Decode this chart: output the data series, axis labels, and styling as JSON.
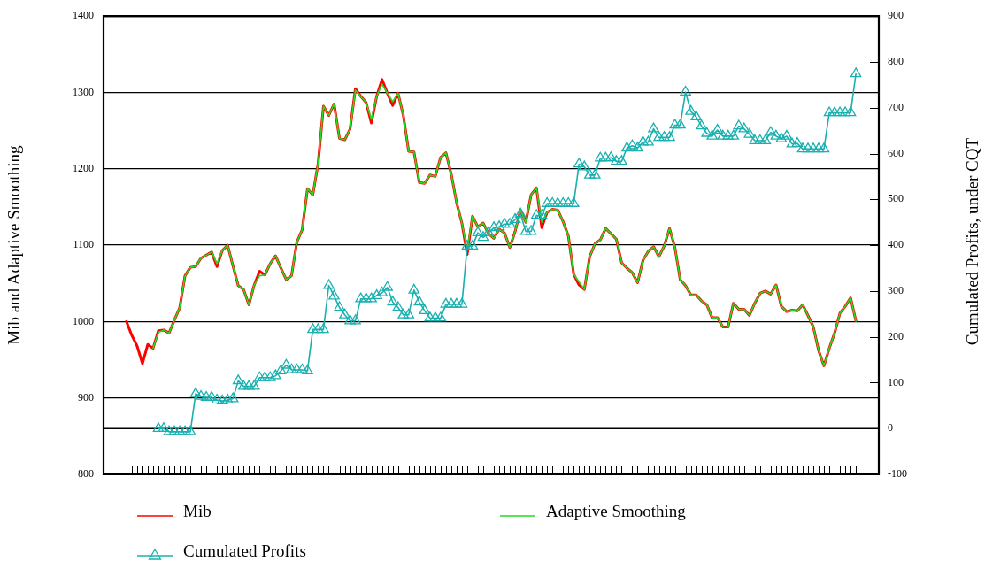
{
  "chart_data": {
    "type": "line",
    "ylabel": "Mib and Adaptive Smoothing",
    "y2label": "Cumulated Profits, under CQT",
    "categories": [
      null,
      null,
      null,
      null,
      null,
      null,
      null,
      null,
      null,
      null,
      null,
      null,
      null,
      null,
      null,
      null,
      null,
      null,
      null,
      null,
      null,
      null,
      null,
      null,
      null,
      null,
      null,
      null,
      null,
      null,
      null,
      null,
      null,
      null,
      null,
      null,
      null,
      null,
      null,
      null,
      null,
      null,
      null,
      null,
      null,
      null,
      null,
      null,
      null,
      null,
      null,
      null,
      null,
      null,
      null,
      null,
      null,
      null,
      null,
      null,
      null,
      null,
      null,
      null,
      null,
      null,
      null,
      null,
      null,
      null,
      null,
      null,
      null,
      null,
      null,
      null,
      null,
      null,
      null,
      null,
      null,
      null,
      null,
      null,
      null,
      null,
      null,
      null,
      null,
      null,
      null,
      null,
      null,
      null,
      null,
      null,
      null,
      null,
      null,
      null,
      null,
      null,
      null,
      null,
      null,
      null,
      null,
      null,
      null,
      null,
      null,
      null,
      null,
      null,
      null,
      null,
      null,
      null,
      null,
      null,
      null,
      null,
      null,
      null,
      null,
      null,
      null,
      null,
      null,
      null,
      null,
      null,
      null,
      null,
      null,
      null,
      null,
      null
    ],
    "series": [
      {
        "name": "Mib",
        "color": "#ff0000",
        "values": [
          1000,
          982,
          968,
          945,
          970,
          965,
          988,
          989,
          985,
          1002,
          1018,
          1060,
          1071,
          1072,
          1083,
          1087,
          1091,
          1072,
          1093,
          1100,
          1073,
          1047,
          1042,
          1022,
          1048,
          1066,
          1061,
          1076,
          1086,
          1070,
          1055,
          1060,
          1104,
          1120,
          1174,
          1166,
          1207,
          1282,
          1270,
          1285,
          1240,
          1238,
          1252,
          1305,
          1295,
          1287,
          1260,
          1295,
          1317,
          1299,
          1283,
          1299,
          1270,
          1223,
          1222,
          1182,
          1181,
          1192,
          1190,
          1215,
          1221,
          1193,
          1156,
          1129,
          1088,
          1138,
          1124,
          1129,
          1115,
          1109,
          1121,
          1116,
          1097,
          1118,
          1146,
          1130,
          1166,
          1175,
          1123,
          1143,
          1147,
          1146,
          1131,
          1112,
          1062,
          1048,
          1042,
          1085,
          1102,
          1107,
          1122,
          1115,
          1108,
          1077,
          1070,
          1064,
          1051,
          1080,
          1092,
          1098,
          1085,
          1099,
          1122,
          1097,
          1055,
          1047,
          1035,
          1035,
          1027,
          1022,
          1005,
          1005,
          993,
          993,
          1024,
          1016,
          1016,
          1008,
          1024,
          1037,
          1040,
          1036,
          1048,
          1020,
          1013,
          1015,
          1014,
          1022,
          1008,
          993,
          962,
          942,
          965,
          985,
          1011,
          1020,
          1031,
          1001
        ]
      },
      {
        "name": "Adaptive Smoothing",
        "color": "#22dd22",
        "values": [
          null,
          null,
          null,
          null,
          null,
          965,
          986,
          989,
          985,
          1002,
          1018,
          1060,
          1071,
          1072,
          1083,
          1087,
          1091,
          1076,
          1093,
          1100,
          1073,
          1047,
          1042,
          1022,
          1048,
          1060,
          1061,
          1076,
          1086,
          1070,
          1055,
          1060,
          1104,
          1120,
          1174,
          1166,
          1207,
          1282,
          1270,
          1285,
          1240,
          1238,
          1252,
          1303,
          1295,
          1287,
          1265,
          1295,
          1311,
          1299,
          1288,
          1299,
          1270,
          1223,
          1222,
          1182,
          1181,
          1192,
          1190,
          1215,
          1221,
          1193,
          1156,
          1129,
          1094,
          1138,
          1124,
          1129,
          1115,
          1109,
          1121,
          1116,
          1097,
          1118,
          1146,
          1130,
          1166,
          1175,
          1130,
          1143,
          1147,
          1146,
          1131,
          1112,
          1062,
          1052,
          1042,
          1085,
          1102,
          1107,
          1122,
          1115,
          1108,
          1077,
          1070,
          1064,
          1051,
          1080,
          1092,
          1098,
          1085,
          1099,
          1122,
          1097,
          1055,
          1047,
          1035,
          1035,
          1027,
          1022,
          1005,
          1005,
          993,
          993,
          1024,
          1016,
          1016,
          1008,
          1024,
          1037,
          1040,
          1036,
          1048,
          1020,
          1013,
          1015,
          1014,
          1022,
          1008,
          993,
          962,
          942,
          965,
          985,
          1011,
          1020,
          1031,
          1001
        ]
      },
      {
        "name": "Cumulated Profits",
        "color": "#1ab0b0",
        "axis": "y2",
        "marker": "triangle",
        "values": [
          null,
          null,
          null,
          null,
          null,
          null,
          0,
          0,
          -7,
          -7,
          -7,
          -7,
          -7,
          76,
          70,
          68,
          68,
          62,
          60,
          62,
          65,
          104,
          92,
          92,
          92,
          111,
          111,
          111,
          115,
          126,
          138,
          128,
          128,
          128,
          126,
          216,
          216,
          216,
          312,
          289,
          264,
          248,
          235,
          235,
          283,
          283,
          283,
          290,
          296,
          308,
          276,
          264,
          248,
          248,
          302,
          276,
          257,
          241,
          241,
          241,
          271,
          271,
          271,
          271,
          398,
          398,
          427,
          417,
          427,
          438,
          440,
          446,
          446,
          456,
          468,
          430,
          430,
          465,
          465,
          491,
          491,
          491,
          491,
          491,
          491,
          577,
          571,
          553,
          553,
          590,
          590,
          591,
          583,
          583,
          612,
          617,
          612,
          625,
          625,
          654,
          635,
          635,
          635,
          662,
          662,
          734,
          692,
          680,
          660,
          644,
          638,
          651,
          638,
          638,
          638,
          660,
          654,
          642,
          628,
          628,
          628,
          646,
          638,
          632,
          638,
          621,
          622,
          610,
          610,
          610,
          610,
          610,
          689,
          689,
          689,
          689,
          689,
          774
        ]
      }
    ],
    "ylim": [
      800,
      1400
    ],
    "yticks": [
      800,
      900,
      1000,
      1100,
      1200,
      1300,
      1400
    ],
    "y2lim": [
      -100,
      900
    ],
    "y2ticks": [
      -100,
      0,
      100,
      200,
      300,
      400,
      500,
      600,
      700,
      800,
      900
    ],
    "ref_lines": [
      {
        "axis": "y2",
        "value": 0,
        "color": "#000000"
      }
    ],
    "grid": "y",
    "legend": "bottom",
    "tick_labels": "y"
  }
}
